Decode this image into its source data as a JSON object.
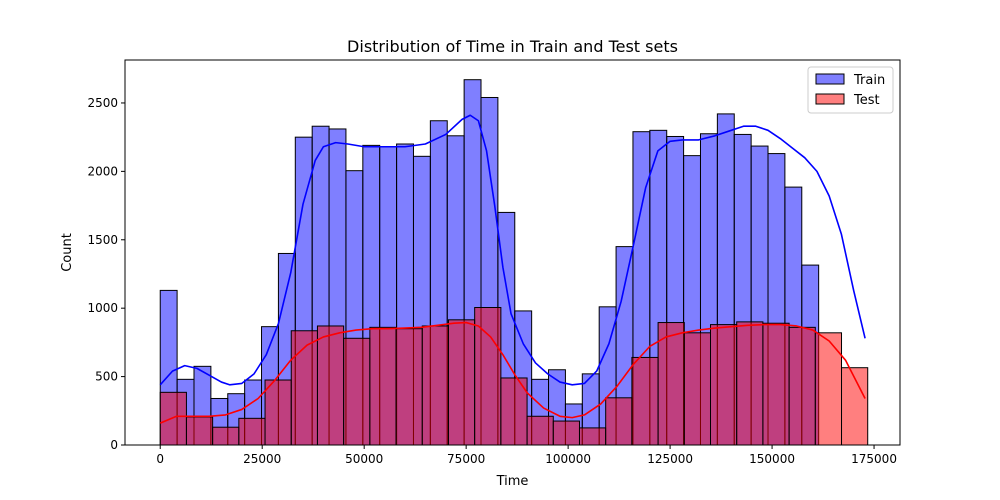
{
  "chart_data": {
    "type": "bar",
    "title": "Distribution of Time in Train and Test sets",
    "xlabel": "Time",
    "ylabel": "Count",
    "xlim": [
      -8637,
      181362
    ],
    "ylim": [
      0,
      2814
    ],
    "xticks": [
      0,
      25000,
      50000,
      75000,
      100000,
      125000,
      150000,
      175000
    ],
    "yticks": [
      0,
      500,
      1000,
      1500,
      2000,
      2500
    ],
    "grid": false,
    "legend_position": "top-right",
    "train_bin_start": 0,
    "train_bin_width": 4139,
    "test_bin_start": 0,
    "test_bin_width": 6424,
    "series": [
      {
        "name": "Train",
        "color": "#0000ff",
        "values": [
          1130,
          480,
          575,
          340,
          375,
          475,
          865,
          1400,
          2250,
          2330,
          2310,
          2005,
          2190,
          2180,
          2200,
          2110,
          2370,
          2260,
          2670,
          2540,
          1700,
          980,
          480,
          550,
          300,
          520,
          1010,
          1450,
          2290,
          2300,
          2255,
          2115,
          2275,
          2420,
          2270,
          2185,
          2130,
          1885,
          1315
        ],
        "kde": [
          [
            0,
            440
          ],
          [
            3000,
            540
          ],
          [
            6000,
            580
          ],
          [
            9000,
            560
          ],
          [
            12000,
            510
          ],
          [
            15000,
            460
          ],
          [
            17000,
            440
          ],
          [
            20000,
            450
          ],
          [
            23000,
            520
          ],
          [
            26000,
            660
          ],
          [
            29000,
            890
          ],
          [
            32000,
            1260
          ],
          [
            35000,
            1760
          ],
          [
            38000,
            2080
          ],
          [
            40000,
            2180
          ],
          [
            43000,
            2210
          ],
          [
            46000,
            2200
          ],
          [
            50000,
            2180
          ],
          [
            55000,
            2180
          ],
          [
            60000,
            2180
          ],
          [
            65000,
            2200
          ],
          [
            70000,
            2270
          ],
          [
            74000,
            2380
          ],
          [
            76000,
            2410
          ],
          [
            78000,
            2370
          ],
          [
            80000,
            2150
          ],
          [
            82000,
            1750
          ],
          [
            84000,
            1300
          ],
          [
            86000,
            960
          ],
          [
            89000,
            740
          ],
          [
            92000,
            600
          ],
          [
            95000,
            520
          ],
          [
            98000,
            460
          ],
          [
            101000,
            440
          ],
          [
            104000,
            450
          ],
          [
            107000,
            540
          ],
          [
            110000,
            740
          ],
          [
            113000,
            1050
          ],
          [
            116000,
            1460
          ],
          [
            119000,
            1880
          ],
          [
            122000,
            2150
          ],
          [
            125000,
            2220
          ],
          [
            128000,
            2230
          ],
          [
            132000,
            2230
          ],
          [
            136000,
            2260
          ],
          [
            140000,
            2300
          ],
          [
            143000,
            2330
          ],
          [
            146000,
            2330
          ],
          [
            149000,
            2300
          ],
          [
            152000,
            2240
          ],
          [
            155000,
            2170
          ],
          [
            158000,
            2100
          ],
          [
            161000,
            2000
          ],
          [
            164000,
            1820
          ],
          [
            167000,
            1540
          ],
          [
            170000,
            1130
          ],
          [
            172800,
            780
          ]
        ]
      },
      {
        "name": "Test",
        "color": "#ff0000",
        "values": [
          385,
          205,
          130,
          195,
          475,
          835,
          870,
          780,
          860,
          850,
          870,
          915,
          1005,
          490,
          210,
          175,
          125,
          345,
          640,
          895,
          820,
          880,
          900,
          890,
          860,
          820,
          565
        ],
        "kde": [
          [
            0,
            160
          ],
          [
            4000,
            210
          ],
          [
            8000,
            210
          ],
          [
            12000,
            210
          ],
          [
            16000,
            220
          ],
          [
            20000,
            260
          ],
          [
            24000,
            340
          ],
          [
            28000,
            470
          ],
          [
            32000,
            620
          ],
          [
            36000,
            730
          ],
          [
            40000,
            790
          ],
          [
            44000,
            820
          ],
          [
            48000,
            840
          ],
          [
            52000,
            850
          ],
          [
            56000,
            850
          ],
          [
            60000,
            855
          ],
          [
            64000,
            860
          ],
          [
            68000,
            875
          ],
          [
            72000,
            890
          ],
          [
            75000,
            895
          ],
          [
            78000,
            870
          ],
          [
            81000,
            790
          ],
          [
            84000,
            660
          ],
          [
            87000,
            510
          ],
          [
            90000,
            380
          ],
          [
            94000,
            270
          ],
          [
            98000,
            210
          ],
          [
            101000,
            200
          ],
          [
            104000,
            220
          ],
          [
            108000,
            300
          ],
          [
            112000,
            430
          ],
          [
            116000,
            590
          ],
          [
            120000,
            720
          ],
          [
            124000,
            790
          ],
          [
            128000,
            820
          ],
          [
            132000,
            840
          ],
          [
            136000,
            855
          ],
          [
            140000,
            865
          ],
          [
            144000,
            875
          ],
          [
            148000,
            880
          ],
          [
            152000,
            880
          ],
          [
            156000,
            870
          ],
          [
            160000,
            840
          ],
          [
            164000,
            760
          ],
          [
            168000,
            620
          ],
          [
            172800,
            340
          ]
        ]
      }
    ]
  }
}
